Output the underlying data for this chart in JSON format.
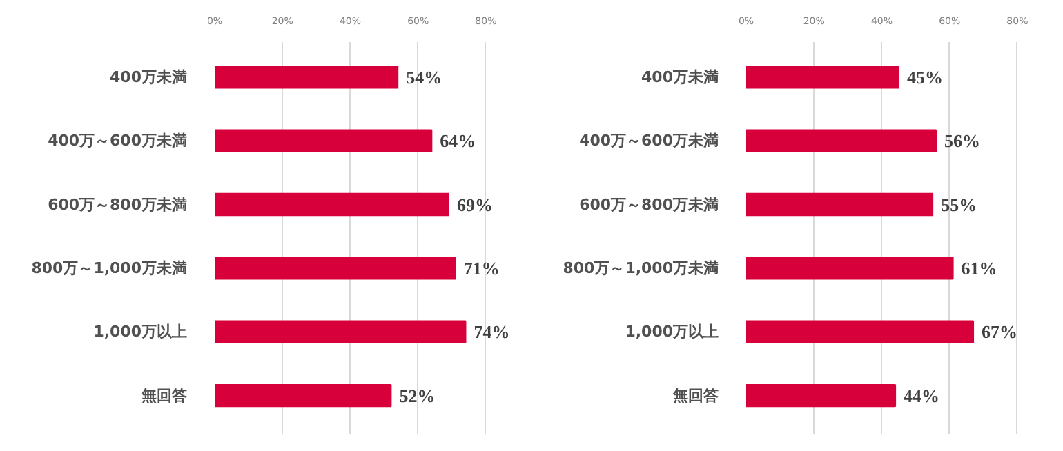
{
  "chart_data": [
    {
      "type": "bar",
      "orientation": "horizontal",
      "categories": [
        "400万未満",
        "400万～600万未満",
        "600万～800万未満",
        "800万～1,000万未満",
        "1,000万以上",
        "無回答"
      ],
      "values": [
        54,
        64,
        69,
        71,
        74,
        52
      ],
      "value_labels": [
        "54%",
        "64%",
        "69%",
        "71%",
        "74%",
        "52%"
      ],
      "color": "#d7003a",
      "xlim": [
        0,
        80
      ],
      "xticks": [
        {
          "value": 0,
          "label": "0%"
        },
        {
          "value": 20,
          "label": "20%"
        },
        {
          "value": 40,
          "label": "40%"
        },
        {
          "value": 60,
          "label": "60%"
        },
        {
          "value": 80,
          "label": "80%"
        }
      ],
      "grid": "x"
    },
    {
      "type": "bar",
      "orientation": "horizontal",
      "categories": [
        "400万未満",
        "400万～600万未満",
        "600万～800万未満",
        "800万～1,000万未満",
        "1,000万以上",
        "無回答"
      ],
      "values": [
        45,
        56,
        55,
        61,
        67,
        44
      ],
      "value_labels": [
        "45%",
        "56%",
        "55%",
        "61%",
        "67%",
        "44%"
      ],
      "color": "#d7003a",
      "xlim": [
        0,
        80
      ],
      "xticks": [
        {
          "value": 0,
          "label": "0%"
        },
        {
          "value": 20,
          "label": "20%"
        },
        {
          "value": 40,
          "label": "40%"
        },
        {
          "value": 60,
          "label": "60%"
        },
        {
          "value": 80,
          "label": "80%"
        }
      ],
      "grid": "x"
    }
  ]
}
